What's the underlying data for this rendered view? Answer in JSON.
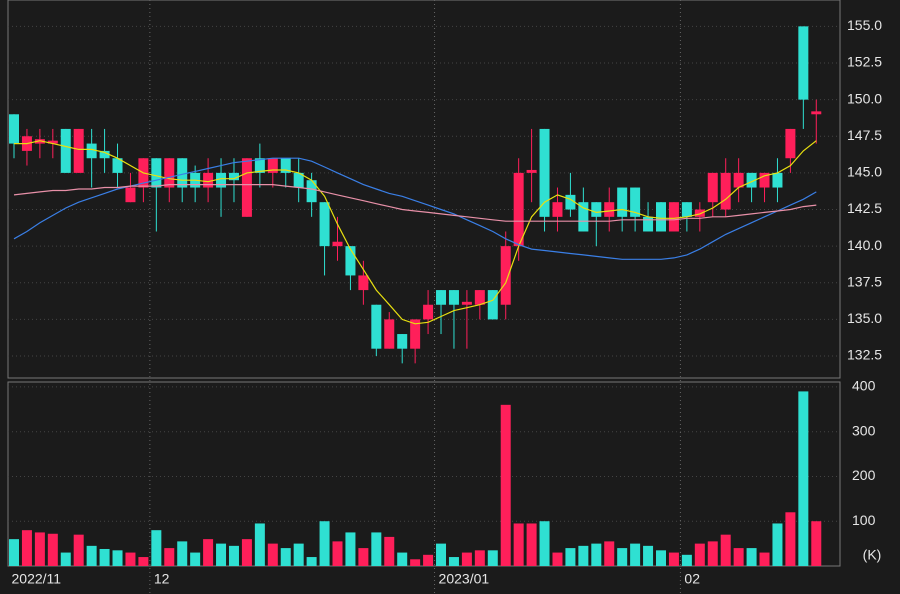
{
  "chart_data": {
    "type": "candlestick",
    "categories": [
      "2022/11",
      null,
      null,
      null,
      null,
      null,
      null,
      null,
      null,
      null,
      null,
      "12",
      null,
      null,
      null,
      null,
      null,
      null,
      null,
      null,
      null,
      null,
      null,
      null,
      null,
      null,
      null,
      null,
      null,
      null,
      null,
      null,
      null,
      "2023/01",
      null,
      null,
      null,
      null,
      null,
      null,
      null,
      null,
      null,
      null,
      null,
      null,
      null,
      null,
      null,
      null,
      null,
      null,
      "02",
      null,
      null,
      null,
      null,
      null,
      null,
      null,
      null,
      null,
      null
    ],
    "open": [
      149,
      146.5,
      147,
      147,
      148,
      145,
      147,
      146.5,
      146,
      143,
      144,
      146,
      144,
      146,
      145,
      144,
      145,
      145,
      142,
      146,
      145,
      146,
      145,
      144.5,
      143,
      140,
      140,
      137,
      136,
      133,
      134,
      133,
      135,
      137,
      137,
      136,
      136,
      137,
      136,
      140,
      145,
      148,
      142,
      143.5,
      143,
      143,
      142,
      144,
      144,
      142,
      143,
      141,
      143,
      142,
      143,
      142.5,
      144,
      145,
      144,
      145,
      146,
      155,
      149
    ],
    "high": [
      149,
      148,
      148,
      148,
      148,
      148,
      148,
      148,
      147,
      145,
      146,
      146,
      146,
      146,
      145.5,
      146,
      146,
      146,
      146,
      147,
      146,
      146,
      146,
      145,
      143,
      142,
      140,
      139,
      136,
      135.5,
      134,
      135,
      137,
      137,
      137,
      137,
      137,
      137,
      141,
      146,
      148,
      148,
      144,
      145,
      144,
      143,
      144,
      144,
      144,
      143,
      143,
      143,
      143,
      143,
      145,
      146,
      146,
      145,
      145,
      146,
      148,
      155,
      150
    ],
    "low": [
      146,
      145.5,
      146,
      146,
      145,
      145,
      144,
      145,
      144,
      143,
      143,
      141,
      143,
      143,
      143,
      143,
      142,
      143,
      142,
      144,
      144,
      144,
      143,
      142,
      138,
      139,
      137,
      136,
      132.5,
      133,
      132,
      132,
      134,
      134,
      133,
      133,
      135,
      135,
      135,
      139,
      143,
      141,
      141,
      142,
      141,
      140,
      141,
      141,
      141,
      141,
      141,
      141,
      141,
      141,
      142,
      142,
      143,
      143,
      143,
      143,
      145,
      148,
      147
    ],
    "close": [
      147,
      147.5,
      147.3,
      147.2,
      145,
      148,
      146,
      146,
      145,
      144,
      146,
      144,
      146,
      144,
      144,
      145,
      144,
      144.5,
      146,
      145,
      146,
      145,
      144,
      143,
      140,
      140.3,
      138,
      138,
      133,
      135,
      133,
      135,
      136,
      136,
      136,
      136.2,
      137,
      135,
      140,
      145,
      145.2,
      142,
      143,
      142.5,
      141,
      142,
      143,
      142,
      142,
      141,
      141,
      143,
      142,
      142.5,
      145,
      145,
      145,
      144,
      145,
      144,
      148,
      150,
      149.2
    ],
    "up_color": "#ff1f5a",
    "down_color": "#2fe0d2",
    "ylim": [
      131,
      156.8
    ],
    "yticks": [
      132.5,
      {
        "value": 135,
        "label": "135.0"
      },
      137.5,
      {
        "value": 140,
        "label": "140.0"
      },
      142.5,
      {
        "value": 145,
        "label": "145.0"
      },
      147.5,
      {
        "value": 150,
        "label": "150.0"
      },
      152.5,
      {
        "value": 155,
        "label": "155.0"
      }
    ],
    "grid": true,
    "series": [
      {
        "color": "#e8e010",
        "values": [
          147,
          147,
          147.2,
          147,
          146.8,
          146.6,
          146.6,
          146.4,
          146,
          145.5,
          145,
          144.8,
          144.6,
          144.5,
          144.5,
          144.4,
          144.6,
          144.6,
          145,
          145.1,
          145.2,
          145.2,
          145,
          144.5,
          143.4,
          141.5,
          139.8,
          138.4,
          137,
          136,
          135,
          134.7,
          134.8,
          135.2,
          135.6,
          135.8,
          136,
          136.3,
          137.5,
          140,
          142,
          143,
          143.5,
          143.2,
          142.6,
          142.3,
          142.4,
          142.5,
          142.3,
          142,
          141.9,
          141.9,
          142,
          142.2,
          142.6,
          143.2,
          144,
          144.4,
          144.8,
          145,
          145.5,
          146.5,
          147.2
        ]
      },
      {
        "color": "#3a7fe6",
        "values": [
          140.5,
          141,
          141.6,
          142.1,
          142.6,
          143,
          143.3,
          143.6,
          143.9,
          144.1,
          144.3,
          144.5,
          144.7,
          144.9,
          145.1,
          145.3,
          145.5,
          145.7,
          145.8,
          145.9,
          146,
          146,
          146,
          145.8,
          145.4,
          145,
          144.6,
          144.2,
          143.9,
          143.6,
          143.4,
          143.1,
          142.8,
          142.5,
          142.2,
          141.8,
          141.4,
          141,
          140.5,
          140.1,
          139.8,
          139.7,
          139.6,
          139.5,
          139.4,
          139.3,
          139.2,
          139.1,
          139.1,
          139.1,
          139.1,
          139.2,
          139.4,
          139.8,
          140.3,
          140.8,
          141.2,
          141.6,
          142,
          142.4,
          142.8,
          143.2,
          143.7
        ]
      },
      {
        "color": "#e890a8",
        "values": [
          143.5,
          143.6,
          143.7,
          143.8,
          143.8,
          143.9,
          143.9,
          144,
          144,
          144.1,
          144.1,
          144.1,
          144.2,
          144.2,
          144.2,
          144.2,
          144.2,
          144.2,
          144.2,
          144.2,
          144.2,
          144.1,
          144,
          143.9,
          143.7,
          143.5,
          143.3,
          143.1,
          142.9,
          142.7,
          142.5,
          142.4,
          142.3,
          142.2,
          142.1,
          142,
          141.9,
          141.8,
          141.7,
          141.7,
          141.7,
          141.7,
          141.7,
          141.7,
          141.7,
          141.7,
          141.7,
          141.8,
          141.8,
          141.8,
          141.8,
          141.8,
          141.9,
          141.9,
          142,
          142,
          142.1,
          142.2,
          142.3,
          142.4,
          142.5,
          142.7,
          142.8
        ]
      }
    ],
    "volume": {
      "values": [
        60,
        80,
        75,
        72,
        30,
        70,
        45,
        38,
        35,
        30,
        20,
        80,
        40,
        55,
        30,
        60,
        50,
        45,
        60,
        95,
        50,
        40,
        50,
        20,
        100,
        55,
        75,
        40,
        75,
        65,
        30,
        15,
        25,
        50,
        20,
        30,
        35,
        35,
        360,
        95,
        95,
        100,
        30,
        40,
        45,
        50,
        55,
        40,
        50,
        45,
        35,
        30,
        25,
        50,
        55,
        70,
        40,
        40,
        30,
        95,
        120,
        390,
        100
      ],
      "ylim": [
        0,
        411
      ],
      "yticks": [
        100,
        200,
        300,
        400
      ],
      "unit": "(K)"
    }
  }
}
